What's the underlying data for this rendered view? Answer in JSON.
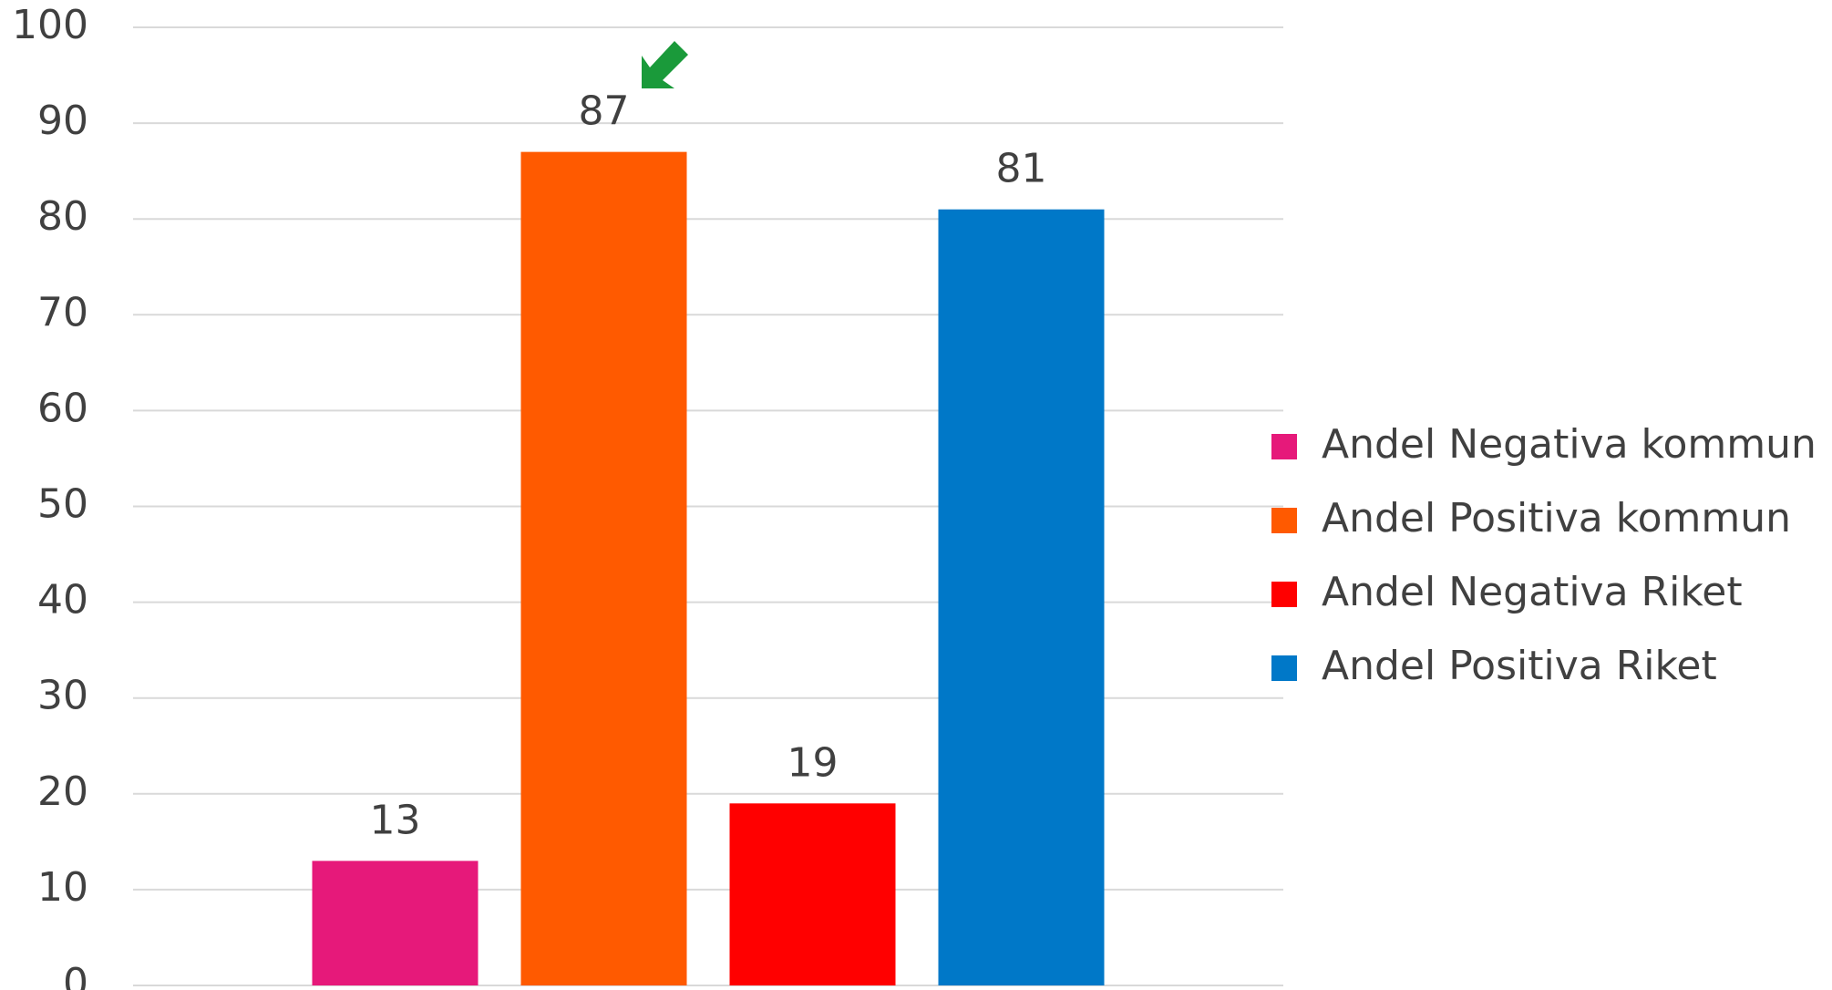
{
  "chart_data": {
    "type": "bar",
    "categories": [
      null
    ],
    "series": [
      {
        "name": "Andel Negativa kommun",
        "color": "#e6197a",
        "values": [
          13
        ]
      },
      {
        "name": "Andel Positiva kommun",
        "color": "#ff5a00",
        "values": [
          87
        ]
      },
      {
        "name": "Andel Negativa Riket",
        "color": "#ff0000",
        "values": [
          19
        ]
      },
      {
        "name": "Andel Positiva Riket",
        "color": "#0078c8",
        "values": [
          81
        ]
      }
    ],
    "ylim": [
      0,
      100
    ],
    "yticks": [
      0,
      10,
      20,
      30,
      40,
      50,
      60,
      70,
      80,
      90,
      100
    ],
    "grid": true,
    "legend": "right"
  }
}
